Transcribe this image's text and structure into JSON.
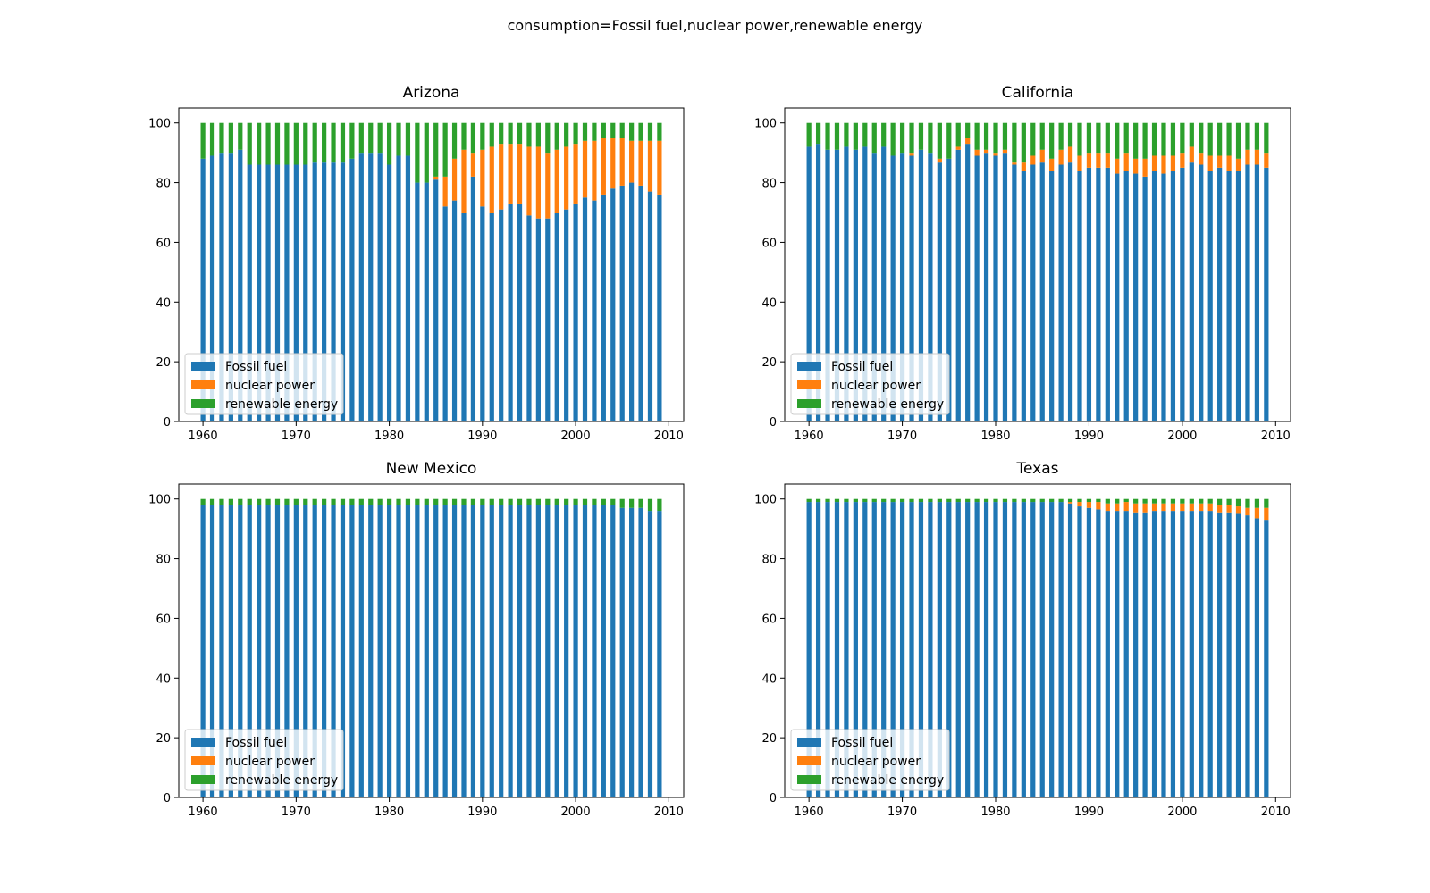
{
  "figure": {
    "suptitle": "consumption=Fossil fuel,nuclear power,renewable energy"
  },
  "colors": {
    "fossil": "#1f77b4",
    "nuclear": "#ff7f0e",
    "renewable": "#2ca02c"
  },
  "chart_data": [
    {
      "type": "bar",
      "stacked": true,
      "title": "Arizona",
      "xlabel": "",
      "ylabel": "",
      "xlim": [
        1957.4,
        2011.6
      ],
      "ylim": [
        0,
        105
      ],
      "xticks": [
        1960,
        1970,
        1980,
        1990,
        2000,
        2010
      ],
      "yticks": [
        0,
        20,
        40,
        60,
        80,
        100
      ],
      "x": [
        1960,
        1961,
        1962,
        1963,
        1964,
        1965,
        1966,
        1967,
        1968,
        1969,
        1970,
        1971,
        1972,
        1973,
        1974,
        1975,
        1976,
        1977,
        1978,
        1979,
        1980,
        1981,
        1982,
        1983,
        1984,
        1985,
        1986,
        1987,
        1988,
        1989,
        1990,
        1991,
        1992,
        1993,
        1994,
        1995,
        1996,
        1997,
        1998,
        1999,
        2000,
        2001,
        2002,
        2003,
        2004,
        2005,
        2006,
        2007,
        2008,
        2009
      ],
      "legend_location": "lower left",
      "series": [
        {
          "name": "Fossil fuel",
          "color": "#1f77b4",
          "values": [
            88,
            89,
            90,
            90,
            91,
            86,
            86,
            86,
            86,
            86,
            86,
            86,
            87,
            87,
            87,
            87,
            88,
            90,
            90,
            90,
            86,
            89,
            89,
            80,
            80,
            81,
            72,
            74,
            70,
            82,
            72,
            70,
            71,
            73,
            73,
            69,
            68,
            68,
            70,
            71,
            73,
            75,
            74,
            76,
            78,
            79,
            80,
            79,
            77,
            76
          ]
        },
        {
          "name": "nuclear power",
          "color": "#ff7f0e",
          "values": [
            0,
            0,
            0,
            0,
            0,
            0,
            0,
            0,
            0,
            0,
            0,
            0,
            0,
            0,
            0,
            0,
            0,
            0,
            0,
            0,
            0,
            0,
            0,
            0,
            0,
            1,
            10,
            14,
            21,
            8,
            19,
            22,
            22,
            20,
            20,
            23,
            24,
            22,
            21,
            21,
            20,
            19,
            20,
            19,
            17,
            16,
            14,
            15,
            17,
            18
          ]
        },
        {
          "name": "renewable energy",
          "color": "#2ca02c",
          "values": [
            12,
            11,
            10,
            10,
            9,
            14,
            14,
            14,
            14,
            14,
            14,
            14,
            13,
            13,
            13,
            13,
            12,
            10,
            10,
            10,
            14,
            11,
            11,
            20,
            20,
            18,
            18,
            12,
            9,
            10,
            9,
            8,
            7,
            7,
            7,
            8,
            8,
            10,
            9,
            8,
            7,
            6,
            6,
            5,
            5,
            5,
            6,
            6,
            6,
            6
          ]
        }
      ]
    },
    {
      "type": "bar",
      "stacked": true,
      "title": "California",
      "xlabel": "",
      "ylabel": "",
      "xlim": [
        1957.4,
        2011.6
      ],
      "ylim": [
        0,
        105
      ],
      "xticks": [
        1960,
        1970,
        1980,
        1990,
        2000,
        2010
      ],
      "yticks": [
        0,
        20,
        40,
        60,
        80,
        100
      ],
      "x": [
        1960,
        1961,
        1962,
        1963,
        1964,
        1965,
        1966,
        1967,
        1968,
        1969,
        1970,
        1971,
        1972,
        1973,
        1974,
        1975,
        1976,
        1977,
        1978,
        1979,
        1980,
        1981,
        1982,
        1983,
        1984,
        1985,
        1986,
        1987,
        1988,
        1989,
        1990,
        1991,
        1992,
        1993,
        1994,
        1995,
        1996,
        1997,
        1998,
        1999,
        2000,
        2001,
        2002,
        2003,
        2004,
        2005,
        2006,
        2007,
        2008,
        2009
      ],
      "legend_location": "lower left",
      "series": [
        {
          "name": "Fossil fuel",
          "color": "#1f77b4",
          "values": [
            92,
            93,
            91,
            91,
            92,
            91,
            92,
            90,
            92,
            89,
            90,
            89,
            91,
            90,
            87,
            88,
            91,
            93,
            89,
            90,
            89,
            90,
            86,
            84,
            86,
            87,
            84,
            86,
            87,
            84,
            85,
            85,
            85,
            83,
            84,
            83,
            82,
            84,
            83,
            84,
            85,
            87,
            86,
            84,
            85,
            84,
            84,
            86,
            86,
            85
          ]
        },
        {
          "name": "nuclear power",
          "color": "#ff7f0e",
          "values": [
            0,
            0,
            0,
            0,
            0,
            0,
            0,
            0,
            0,
            0,
            0,
            1,
            0,
            0,
            1,
            0,
            1,
            2,
            2,
            1,
            1,
            1,
            1,
            3,
            3,
            4,
            4,
            5,
            5,
            5,
            5,
            5,
            5,
            5,
            6,
            5,
            6,
            5,
            6,
            5,
            5,
            5,
            4,
            5,
            4,
            5,
            4,
            5,
            5,
            5
          ]
        },
        {
          "name": "renewable energy",
          "color": "#2ca02c",
          "values": [
            8,
            7,
            9,
            9,
            8,
            9,
            8,
            10,
            8,
            11,
            10,
            10,
            9,
            10,
            12,
            12,
            8,
            5,
            9,
            9,
            10,
            9,
            13,
            13,
            11,
            9,
            12,
            9,
            8,
            11,
            10,
            10,
            10,
            12,
            10,
            12,
            12,
            11,
            11,
            11,
            10,
            8,
            10,
            11,
            11,
            11,
            12,
            9,
            9,
            10
          ]
        }
      ]
    },
    {
      "type": "bar",
      "stacked": true,
      "title": "New Mexico",
      "xlabel": "",
      "ylabel": "",
      "xlim": [
        1957.4,
        2011.6
      ],
      "ylim": [
        0,
        105
      ],
      "xticks": [
        1960,
        1970,
        1980,
        1990,
        2000,
        2010
      ],
      "yticks": [
        0,
        20,
        40,
        60,
        80,
        100
      ],
      "x": [
        1960,
        1961,
        1962,
        1963,
        1964,
        1965,
        1966,
        1967,
        1968,
        1969,
        1970,
        1971,
        1972,
        1973,
        1974,
        1975,
        1976,
        1977,
        1978,
        1979,
        1980,
        1981,
        1982,
        1983,
        1984,
        1985,
        1986,
        1987,
        1988,
        1989,
        1990,
        1991,
        1992,
        1993,
        1994,
        1995,
        1996,
        1997,
        1998,
        1999,
        2000,
        2001,
        2002,
        2003,
        2004,
        2005,
        2006,
        2007,
        2008,
        2009
      ],
      "legend_location": "lower left",
      "series": [
        {
          "name": "Fossil fuel",
          "color": "#1f77b4",
          "values": [
            98,
            98,
            98,
            98,
            98,
            98,
            98,
            98,
            98,
            98,
            98,
            98,
            98,
            98,
            98,
            98,
            98,
            98,
            98,
            98,
            98,
            98,
            98,
            98,
            98,
            98,
            98,
            98,
            98,
            98,
            98,
            98,
            98,
            98,
            98,
            98,
            98,
            98,
            98,
            98,
            98,
            98,
            98,
            98,
            98,
            97,
            97,
            97,
            96,
            96
          ]
        },
        {
          "name": "nuclear power",
          "color": "#ff7f0e",
          "values": [
            0,
            0,
            0,
            0,
            0,
            0,
            0,
            0,
            0,
            0,
            0,
            0,
            0,
            0,
            0,
            0,
            0,
            0,
            0,
            0,
            0,
            0,
            0,
            0,
            0,
            0,
            0,
            0,
            0,
            0,
            0,
            0,
            0,
            0,
            0,
            0,
            0,
            0,
            0,
            0,
            0,
            0,
            0,
            0,
            0,
            0,
            0,
            0,
            0,
            0
          ]
        },
        {
          "name": "renewable energy",
          "color": "#2ca02c",
          "values": [
            2,
            2,
            2,
            2,
            2,
            2,
            2,
            2,
            2,
            2,
            2,
            2,
            2,
            2,
            2,
            2,
            2,
            2,
            2,
            2,
            2,
            2,
            2,
            2,
            2,
            2,
            2,
            2,
            2,
            2,
            2,
            2,
            2,
            2,
            2,
            2,
            2,
            2,
            2,
            2,
            2,
            2,
            2,
            2,
            2,
            3,
            3,
            3,
            4,
            4
          ]
        }
      ]
    },
    {
      "type": "bar",
      "stacked": true,
      "title": "Texas",
      "xlabel": "",
      "ylabel": "",
      "xlim": [
        1957.4,
        2011.6
      ],
      "ylim": [
        0,
        105
      ],
      "xticks": [
        1960,
        1970,
        1980,
        1990,
        2000,
        2010
      ],
      "yticks": [
        0,
        20,
        40,
        60,
        80,
        100
      ],
      "x": [
        1960,
        1961,
        1962,
        1963,
        1964,
        1965,
        1966,
        1967,
        1968,
        1969,
        1970,
        1971,
        1972,
        1973,
        1974,
        1975,
        1976,
        1977,
        1978,
        1979,
        1980,
        1981,
        1982,
        1983,
        1984,
        1985,
        1986,
        1987,
        1988,
        1989,
        1990,
        1991,
        1992,
        1993,
        1994,
        1995,
        1996,
        1997,
        1998,
        1999,
        2000,
        2001,
        2002,
        2003,
        2004,
        2005,
        2006,
        2007,
        2008,
        2009
      ],
      "legend_location": "lower left",
      "series": [
        {
          "name": "Fossil fuel",
          "color": "#1f77b4",
          "values": [
            99,
            99,
            99,
            99,
            99,
            99,
            99,
            99,
            99,
            99,
            99,
            99,
            99,
            99,
            99,
            99,
            99,
            99,
            99,
            99,
            99,
            99,
            99,
            99,
            99,
            99,
            99,
            99,
            98.5,
            97.5,
            97,
            96.5,
            96,
            96,
            96,
            95.5,
            95.5,
            96,
            96,
            96,
            96,
            96,
            96,
            96,
            95.5,
            95.5,
            95,
            94.5,
            93.5,
            93
          ]
        },
        {
          "name": "nuclear power",
          "color": "#ff7f0e",
          "values": [
            0,
            0,
            0,
            0,
            0,
            0,
            0,
            0,
            0,
            0,
            0,
            0,
            0,
            0,
            0,
            0,
            0,
            0,
            0,
            0,
            0,
            0,
            0,
            0,
            0,
            0,
            0,
            0,
            0.5,
            1.5,
            2,
            2.5,
            2.5,
            2.5,
            3,
            3,
            3,
            2.5,
            2.5,
            2.5,
            2.5,
            2.5,
            2.5,
            2.5,
            2.5,
            2.5,
            2.5,
            2.5,
            3.5,
            4
          ]
        },
        {
          "name": "renewable energy",
          "color": "#2ca02c",
          "values": [
            1,
            1,
            1,
            1,
            1,
            1,
            1,
            1,
            1,
            1,
            1,
            1,
            1,
            1,
            1,
            1,
            1,
            1,
            1,
            1,
            1,
            1,
            1,
            1,
            1,
            1,
            1,
            1,
            1,
            1,
            1,
            1,
            1.5,
            1.5,
            1,
            1.5,
            1.5,
            1.5,
            1.5,
            1.5,
            1.5,
            1.5,
            1.5,
            1.5,
            2,
            2,
            2.5,
            3,
            3,
            3
          ]
        }
      ]
    }
  ]
}
